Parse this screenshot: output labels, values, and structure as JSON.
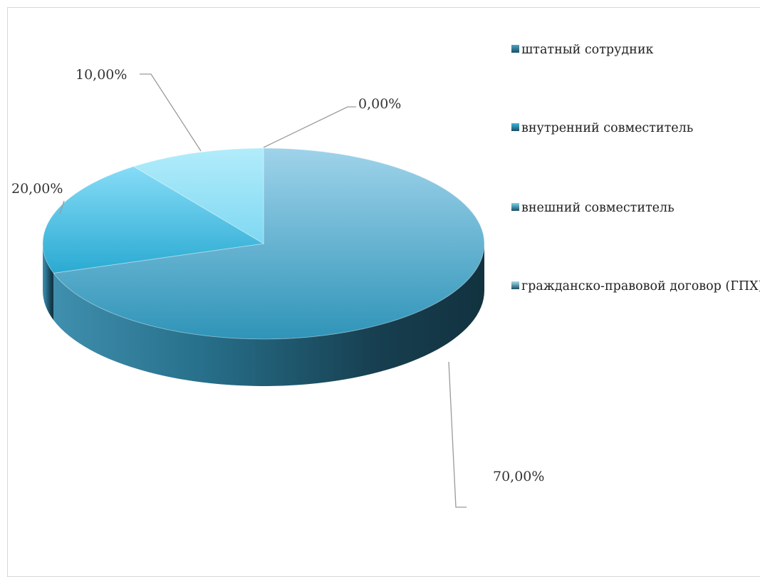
{
  "chart_data": {
    "type": "pie",
    "title": "",
    "categories": [
      "штатный сотрудник",
      "внутренний совместитель",
      "внешний совместитель",
      "гражданско-правовой договор (ГПХ)"
    ],
    "values": [
      70,
      20,
      10,
      0
    ],
    "value_labels": [
      "70,00%",
      "20,00%",
      "10,00%",
      "0,00%"
    ],
    "colors": [
      "#4aa3c8",
      "#38b8de",
      "#74d4f2",
      "#a7dcef"
    ],
    "style": "3d",
    "legend_position": "right"
  }
}
